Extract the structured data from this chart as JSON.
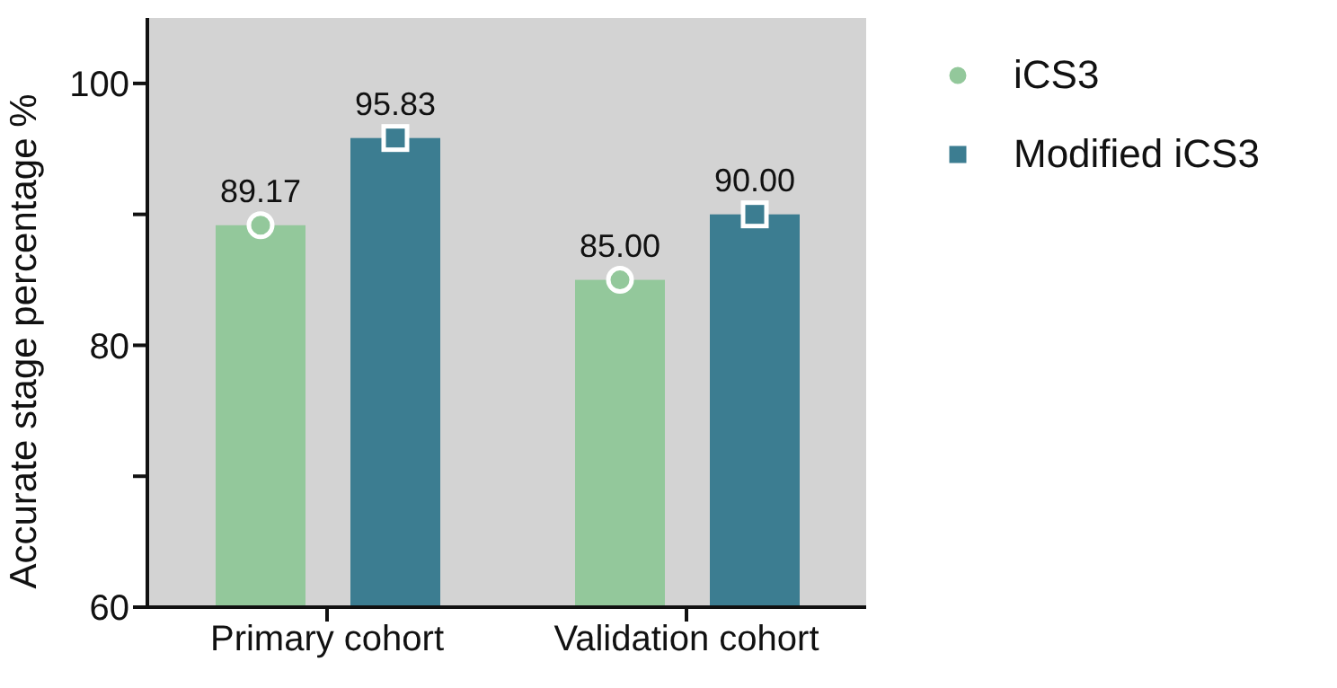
{
  "chart_data": {
    "type": "bar",
    "ylabel": "Accurate stage percentage %",
    "categories": [
      "Primary cohort",
      "Validation cohort"
    ],
    "series": [
      {
        "name": "iCS3",
        "color": "#93c89b",
        "values": [
          89.17,
          85.0
        ],
        "value_labels": [
          "89.17",
          "85.00"
        ]
      },
      {
        "name": "Modified iCS3",
        "color": "#3c7d91",
        "values": [
          95.83,
          90.0
        ],
        "value_labels": [
          "95.83",
          "90.00"
        ]
      },
      {
        "type": "scatter",
        "color": "#93c89b",
        "marker": "circle",
        "x": [
          "Primary cohort",
          "Validation cohort"
        ],
        "values": [
          89.17,
          85.0
        ]
      },
      {
        "type": "scatter",
        "color": "#3c7d91",
        "marker": "square",
        "x": [
          "Primary cohort",
          "Validation cohort"
        ],
        "values": [
          95.83,
          90.0
        ]
      }
    ],
    "ylim": [
      60,
      105
    ],
    "yticks": [
      60,
      {
        "value": 70,
        "label": null
      },
      80,
      {
        "value": 90,
        "label": null
      },
      100
    ],
    "grid": false,
    "legend": "top right"
  }
}
